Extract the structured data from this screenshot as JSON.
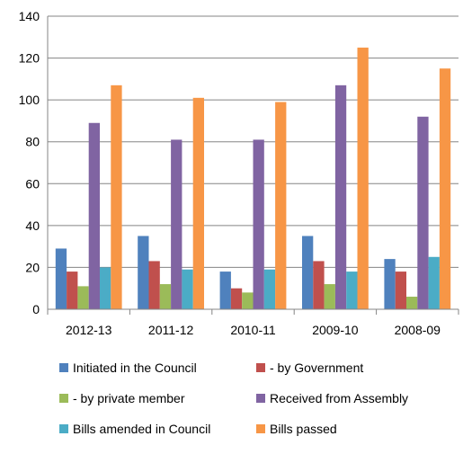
{
  "chart_data": {
    "type": "bar",
    "title": "",
    "xlabel": "",
    "ylabel": "",
    "categories": [
      "2012-13",
      "2011-12",
      "2010-11",
      "2009-10",
      "2008-09"
    ],
    "ylim": [
      0,
      140
    ],
    "yticks": [
      0,
      20,
      40,
      60,
      80,
      100,
      120,
      140
    ],
    "grid": true,
    "legend_position": "bottom",
    "series": [
      {
        "name": "Initiated in the Council",
        "color": "#4F81BD",
        "values": [
          29,
          35,
          18,
          35,
          24
        ]
      },
      {
        "name": "- by Government",
        "color": "#C0504D",
        "values": [
          18,
          23,
          10,
          23,
          18
        ]
      },
      {
        "name": "- by private member",
        "color": "#9BBB59",
        "values": [
          11,
          12,
          8,
          12,
          6
        ]
      },
      {
        "name": "Received from Assembly",
        "color": "#8064A2",
        "values": [
          89,
          81,
          81,
          107,
          92
        ]
      },
      {
        "name": "Bills amended in Council",
        "color": "#4BACC6",
        "values": [
          20,
          19,
          19,
          18,
          25
        ]
      },
      {
        "name": "Bills passed",
        "color": "#F79646",
        "values": [
          107,
          101,
          99,
          125,
          115
        ]
      }
    ]
  }
}
